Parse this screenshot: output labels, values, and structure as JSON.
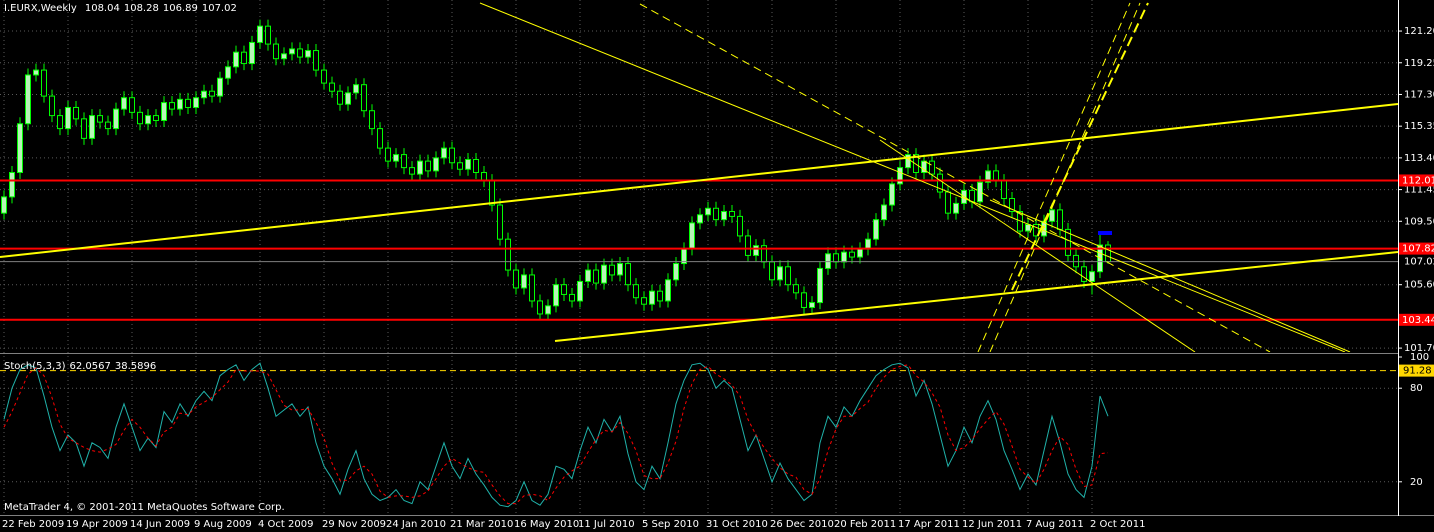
{
  "chart_data": [
    {
      "type": "candlestick",
      "symbol": "I.EURX,Weekly",
      "categories": [
        "22 Feb 2009",
        null,
        null,
        null,
        null,
        null,
        null,
        null,
        "19 Apr 2009",
        null,
        null,
        null,
        null,
        null,
        null,
        null,
        "14 Jun 2009",
        null,
        null,
        null,
        null,
        null,
        null,
        null,
        "9 Aug 2009",
        null,
        null,
        null,
        null,
        null,
        null,
        null,
        "4 Oct 2009",
        null,
        null,
        null,
        null,
        null,
        null,
        null,
        "29 Nov 2009",
        null,
        null,
        null,
        null,
        null,
        null,
        null,
        "24 Jan 2010",
        null,
        null,
        null,
        null,
        null,
        null,
        null,
        "21 Mar 2010",
        null,
        null,
        null,
        null,
        null,
        null,
        null,
        "16 May 2010",
        null,
        null,
        null,
        null,
        null,
        null,
        null,
        "11 Jul 2010",
        null,
        null,
        null,
        null,
        null,
        null,
        null,
        "5 Sep 2010",
        null,
        null,
        null,
        null,
        null,
        null,
        null,
        "31 Oct 2010",
        null,
        null,
        null,
        null,
        null,
        null,
        null,
        "26 Dec 2010",
        null,
        null,
        null,
        null,
        null,
        null,
        null,
        "20 Feb 2011",
        null,
        null,
        null,
        null,
        null,
        null,
        null,
        "17 Apr 2011",
        null,
        null,
        null,
        null,
        null,
        null,
        null,
        "12 Jun 2011",
        null,
        null,
        null,
        null,
        null,
        null,
        null,
        "7 Aug 2011",
        null,
        null,
        null,
        null,
        null,
        null,
        null,
        "2 Oct 2011",
        null,
        null
      ],
      "open": [
        110.0,
        111.0,
        112.5,
        115.5,
        118.5,
        118.8,
        117.2,
        116.0,
        115.2,
        116.5,
        115.8,
        114.6,
        116.0,
        115.6,
        115.2,
        116.4,
        117.1,
        116.2,
        115.5,
        116.0,
        115.7,
        116.8,
        116.4,
        117.0,
        116.5,
        117.1,
        117.5,
        117.2,
        118.3,
        119.0,
        119.9,
        119.2,
        120.5,
        121.5,
        120.4,
        119.5,
        119.8,
        120.1,
        119.6,
        120.0,
        118.8,
        118.0,
        117.5,
        116.7,
        117.4,
        117.9,
        116.3,
        115.2,
        114.0,
        113.2,
        113.6,
        112.8,
        112.4,
        113.2,
        112.6,
        113.4,
        114.0,
        113.1,
        112.7,
        113.3,
        112.5,
        112.0,
        110.5,
        108.4,
        106.5,
        105.4,
        106.2,
        104.6,
        103.8,
        104.3,
        105.6,
        105.0,
        104.6,
        105.8,
        106.5,
        105.7,
        106.8,
        106.2,
        106.9,
        105.6,
        104.8,
        104.4,
        105.2,
        104.6,
        105.9,
        106.9,
        107.8,
        109.4,
        109.9,
        110.3,
        109.6,
        110.1,
        109.8,
        108.6,
        107.4,
        108.0,
        107.0,
        105.9,
        106.7,
        105.6,
        105.1,
        104.2,
        104.5,
        106.6,
        107.5,
        107.0,
        107.6,
        107.3,
        107.8,
        108.4,
        109.6,
        110.5,
        111.8,
        112.8,
        113.6,
        112.5,
        113.2,
        112.4,
        111.3,
        110.0,
        110.6,
        111.4,
        110.7,
        111.9,
        112.6,
        112.0,
        110.9,
        110.1,
        108.9,
        109.3,
        108.6,
        109.5,
        110.2,
        109.0,
        107.4,
        106.7,
        105.8,
        106.4,
        108.04
      ],
      "high": [
        111.4,
        112.9,
        115.9,
        118.9,
        119.2,
        119.2,
        117.6,
        116.4,
        116.9,
        116.9,
        116.2,
        116.4,
        116.4,
        116.0,
        116.8,
        117.5,
        117.5,
        116.6,
        116.4,
        116.4,
        117.2,
        117.2,
        117.4,
        117.4,
        117.5,
        117.9,
        117.9,
        118.7,
        119.4,
        120.3,
        120.3,
        120.9,
        121.9,
        121.9,
        120.8,
        120.2,
        120.5,
        120.5,
        120.4,
        120.4,
        119.2,
        118.4,
        117.9,
        117.8,
        118.3,
        118.3,
        116.7,
        115.6,
        114.4,
        114.0,
        114.0,
        113.2,
        113.6,
        113.6,
        113.8,
        114.4,
        114.4,
        113.5,
        113.7,
        113.7,
        112.9,
        112.4,
        110.9,
        108.8,
        106.9,
        106.6,
        106.6,
        105.0,
        104.7,
        106.0,
        106.0,
        105.4,
        106.2,
        106.9,
        106.9,
        107.2,
        107.2,
        107.3,
        107.3,
        106.0,
        105.2,
        105.6,
        105.6,
        106.3,
        107.3,
        108.2,
        109.8,
        110.3,
        110.7,
        110.7,
        110.5,
        110.5,
        110.2,
        109.0,
        108.4,
        108.4,
        107.4,
        107.1,
        107.1,
        106.0,
        105.5,
        104.9,
        107.0,
        107.9,
        107.9,
        108.0,
        108.0,
        108.2,
        108.8,
        110.0,
        110.9,
        112.2,
        113.2,
        114.0,
        114.0,
        113.6,
        113.6,
        112.8,
        111.7,
        111.0,
        111.8,
        111.8,
        112.3,
        113.0,
        113.0,
        112.4,
        111.3,
        110.5,
        109.7,
        109.7,
        109.9,
        110.6,
        110.6,
        109.4,
        107.8,
        107.1,
        106.8,
        108.9,
        108.28
      ],
      "low": [
        109.6,
        110.6,
        112.1,
        115.1,
        118.1,
        116.8,
        115.6,
        114.8,
        114.8,
        115.4,
        114.2,
        114.2,
        115.2,
        114.8,
        114.8,
        116.0,
        115.8,
        115.1,
        115.1,
        115.3,
        115.3,
        116.0,
        116.0,
        116.1,
        116.1,
        116.7,
        116.8,
        116.8,
        117.9,
        118.6,
        118.8,
        118.8,
        120.1,
        120.0,
        119.1,
        119.1,
        119.4,
        119.2,
        119.2,
        118.4,
        117.6,
        117.1,
        116.3,
        116.3,
        117.0,
        115.9,
        114.8,
        113.6,
        112.8,
        112.8,
        112.4,
        112.0,
        112.0,
        112.2,
        112.2,
        113.0,
        112.7,
        112.3,
        112.3,
        112.1,
        111.6,
        110.1,
        108.0,
        106.1,
        105.0,
        105.0,
        104.2,
        103.4,
        103.4,
        103.9,
        104.6,
        104.2,
        104.2,
        105.4,
        105.3,
        105.3,
        105.8,
        105.8,
        105.2,
        104.4,
        104.0,
        104.0,
        104.2,
        104.2,
        105.5,
        106.5,
        107.4,
        109.0,
        109.5,
        109.2,
        109.2,
        109.4,
        108.2,
        107.0,
        107.0,
        106.6,
        105.5,
        105.5,
        105.2,
        104.7,
        103.8,
        103.8,
        104.1,
        106.2,
        106.6,
        106.6,
        106.9,
        106.9,
        107.4,
        108.0,
        109.2,
        110.1,
        111.4,
        112.4,
        112.1,
        112.1,
        112.0,
        110.9,
        109.6,
        109.6,
        110.2,
        110.3,
        110.3,
        111.5,
        111.6,
        110.5,
        109.7,
        108.5,
        108.5,
        108.2,
        108.2,
        109.1,
        108.6,
        107.0,
        106.3,
        105.4,
        105.0,
        106.0,
        106.89
      ],
      "close": [
        111.0,
        112.5,
        115.5,
        118.5,
        118.8,
        117.2,
        116.0,
        115.2,
        116.5,
        115.8,
        114.6,
        116.0,
        115.6,
        115.2,
        116.4,
        117.1,
        116.2,
        115.5,
        116.0,
        115.7,
        116.8,
        116.4,
        117.0,
        116.5,
        117.1,
        117.5,
        117.2,
        118.3,
        119.0,
        119.9,
        119.2,
        120.5,
        121.5,
        120.4,
        119.5,
        119.8,
        120.1,
        119.6,
        120.0,
        118.8,
        118.0,
        117.5,
        116.7,
        117.4,
        117.9,
        116.3,
        115.2,
        114.0,
        113.2,
        113.6,
        112.8,
        112.4,
        113.2,
        112.6,
        113.4,
        114.0,
        113.1,
        112.7,
        113.3,
        112.5,
        112.0,
        110.5,
        108.4,
        106.5,
        105.4,
        106.2,
        104.6,
        103.8,
        104.3,
        105.6,
        105.0,
        104.6,
        105.8,
        106.5,
        105.7,
        106.8,
        106.2,
        106.9,
        105.6,
        104.8,
        104.4,
        105.2,
        104.6,
        105.9,
        106.9,
        107.8,
        109.4,
        109.9,
        110.3,
        109.6,
        110.1,
        109.8,
        108.6,
        107.4,
        108.0,
        107.0,
        105.9,
        106.7,
        105.6,
        105.1,
        104.2,
        104.5,
        106.6,
        107.5,
        107.0,
        107.6,
        107.3,
        107.8,
        108.4,
        109.6,
        110.5,
        111.8,
        112.8,
        113.6,
        112.5,
        113.2,
        112.4,
        111.3,
        110.0,
        110.6,
        111.4,
        110.7,
        111.9,
        112.6,
        112.0,
        110.9,
        110.1,
        108.9,
        109.3,
        108.6,
        109.5,
        110.2,
        109.0,
        107.4,
        106.7,
        105.8,
        106.4,
        108.04,
        107.02
      ],
      "up_color": "#b8f5b8",
      "down_color": "#000000",
      "wick_color": "#00ff00",
      "ylim": [
        101.46,
        123.11
      ],
      "yticks": [
        {
          "value": 121.2,
          "label": "121.20"
        },
        {
          "value": 119.25,
          "label": "119.25"
        },
        {
          "value": 117.3,
          "label": "117.30"
        },
        {
          "value": 115.35,
          "label": "115.35"
        },
        {
          "value": 113.4,
          "label": "113.40"
        },
        {
          "value": 111.45,
          "label": "111.45"
        },
        {
          "value": 109.5,
          "label": "109.50"
        },
        {
          "value": 105.6,
          "label": "105.60"
        },
        {
          "value": 101.7,
          "label": "101.70"
        }
      ],
      "hlines": [
        112.01,
        107.82,
        103.44
      ],
      "hline_color": "#ff0000",
      "price_line_color": "#808080",
      "grid": true
    },
    {
      "type": "line",
      "indicator": "Stoch(5,3,3)",
      "series": [
        {
          "color": "#20b2aa",
          "line_style": "solid",
          "values": [
            60,
            80,
            92,
            95,
            93,
            75,
            55,
            40,
            50,
            45,
            30,
            45,
            42,
            35,
            55,
            70,
            55,
            40,
            48,
            42,
            65,
            58,
            70,
            62,
            72,
            78,
            72,
            88,
            92,
            95,
            85,
            92,
            96,
            80,
            62,
            66,
            70,
            62,
            68,
            45,
            30,
            22,
            12,
            28,
            40,
            22,
            12,
            8,
            10,
            15,
            8,
            6,
            20,
            15,
            30,
            45,
            30,
            22,
            35,
            25,
            18,
            10,
            5,
            4,
            8,
            20,
            8,
            5,
            12,
            30,
            28,
            22,
            40,
            55,
            45,
            60,
            52,
            62,
            38,
            20,
            15,
            30,
            22,
            45,
            70,
            85,
            95,
            96,
            92,
            80,
            85,
            80,
            60,
            40,
            50,
            35,
            20,
            32,
            22,
            15,
            8,
            12,
            45,
            62,
            55,
            68,
            62,
            72,
            80,
            88,
            92,
            95,
            96,
            93,
            75,
            85,
            70,
            50,
            30,
            40,
            55,
            45,
            62,
            72,
            60,
            40,
            28,
            15,
            25,
            18,
            40,
            62,
            45,
            25,
            15,
            10,
            30,
            75,
            62.0567
          ]
        },
        {
          "color": "#ff0000",
          "line_style": "dash",
          "values": [
            55,
            65,
            77,
            89,
            93,
            88,
            74,
            57,
            48,
            45,
            42,
            40,
            39,
            41,
            44,
            53,
            60,
            55,
            48,
            43,
            52,
            55,
            64,
            63,
            68,
            71,
            74,
            79,
            84,
            92,
            91,
            91,
            91,
            89,
            79,
            69,
            66,
            66,
            67,
            58,
            48,
            32,
            21,
            21,
            27,
            30,
            25,
            14,
            10,
            11,
            11,
            10,
            11,
            14,
            22,
            30,
            35,
            32,
            29,
            27,
            26,
            18,
            11,
            6,
            6,
            11,
            12,
            11,
            8,
            16,
            23,
            27,
            30,
            39,
            47,
            53,
            52,
            58,
            51,
            40,
            24,
            22,
            22,
            32,
            46,
            67,
            83,
            92,
            94,
            89,
            86,
            82,
            75,
            60,
            50,
            42,
            35,
            29,
            25,
            23,
            15,
            12,
            22,
            40,
            54,
            62,
            62,
            67,
            71,
            80,
            87,
            92,
            94,
            95,
            88,
            84,
            77,
            68,
            50,
            40,
            42,
            47,
            54,
            60,
            65,
            57,
            43,
            28,
            23,
            19,
            28,
            40,
            49,
            44,
            28,
            17,
            18,
            38,
            38.5896
          ]
        }
      ],
      "ylim": [
        0,
        100
      ],
      "yticks": [
        100,
        80,
        20
      ],
      "levels": [
        91.28
      ],
      "level_color": "#ffd700",
      "grid": true,
      "annotation": "MetaTrader 4, © 2001-2011 MetaQuotes Software Corp."
    }
  ]
}
